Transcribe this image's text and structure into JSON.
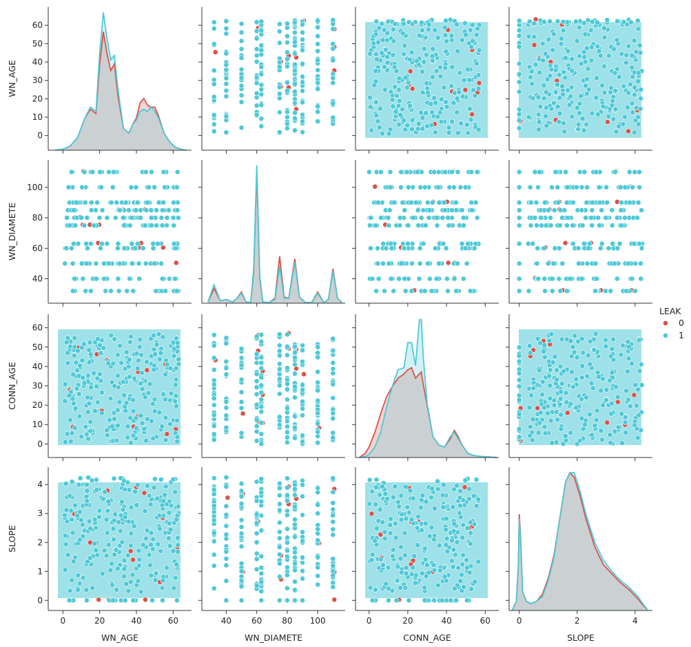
{
  "chart_data": {
    "type": "pairplot",
    "variables": [
      "WN_AGE",
      "WN_DIAMETE",
      "CONN_AGE",
      "SLOPE"
    ],
    "axes": {
      "WN_AGE": {
        "range": [
          -8,
          70
        ],
        "ticks": [
          0,
          10,
          20,
          30,
          40,
          50,
          60
        ],
        "xticks": [
          0,
          20,
          40,
          60
        ]
      },
      "WN_DIAMETE": {
        "range": [
          24,
          118
        ],
        "ticks": [
          40,
          60,
          80,
          100
        ],
        "xticks": [
          40,
          60,
          80,
          100
        ]
      },
      "CONN_AGE": {
        "range": [
          -7,
          67
        ],
        "ticks": [
          0,
          10,
          20,
          30,
          40,
          50,
          60
        ],
        "xticks": [
          0,
          20,
          40,
          60
        ]
      },
      "SLOPE": {
        "range": [
          -0.35,
          4.6
        ],
        "ticks": [
          0,
          1,
          2,
          3,
          4
        ],
        "xticks": [
          0,
          2,
          4
        ]
      }
    },
    "legend": {
      "title": "LEAK",
      "entries": [
        "0",
        "1"
      ],
      "placement": "right"
    },
    "hue_colors": {
      "0": "#d9534a",
      "1": "#4ec9d6"
    },
    "diameter_levels": [
      32,
      40,
      50,
      60,
      63,
      75,
      80,
      85,
      90,
      100,
      110
    ],
    "diagonal_kde": {
      "WN_AGE": {
        "x": [
          -4,
          0,
          4,
          8,
          12,
          15,
          18,
          20,
          22,
          24,
          26,
          28,
          30,
          33,
          36,
          38,
          40,
          42,
          44,
          46,
          48,
          50,
          52,
          55,
          58,
          61,
          64,
          67
        ],
        "0": [
          0,
          0.5,
          2,
          6,
          15,
          19,
          17,
          40,
          55,
          45,
          37,
          40,
          25,
          10,
          8,
          12,
          15,
          22,
          24,
          21,
          20,
          20,
          16,
          8,
          4,
          1.5,
          0.5,
          0
        ],
        "1": [
          0,
          0.5,
          2,
          6,
          15,
          20,
          18,
          45,
          64,
          52,
          42,
          44,
          28,
          10,
          8,
          12,
          14,
          18,
          19,
          18,
          20,
          18,
          15,
          8,
          4,
          1.5,
          0.5,
          0
        ]
      },
      "WN_DIAMETE": {
        "x": [
          28,
          32,
          36,
          40,
          44,
          47,
          50,
          53,
          56,
          58,
          60,
          62,
          64,
          68,
          72,
          75,
          78,
          81,
          85,
          88,
          92,
          96,
          100,
          104,
          107,
          110,
          113,
          116
        ],
        "0": [
          1,
          12,
          2,
          3,
          1,
          4,
          9,
          1,
          0.5,
          25,
          108,
          20,
          1,
          0.5,
          4,
          38,
          5,
          4,
          36,
          5,
          0.5,
          0.5,
          9,
          0.5,
          3,
          28,
          4,
          0.5
        ],
        "1": [
          1,
          15,
          2,
          3,
          1,
          4,
          8,
          1,
          0.5,
          28,
          112,
          22,
          1,
          0.5,
          3,
          30,
          4,
          4,
          33,
          5,
          0.5,
          0.5,
          8,
          0.5,
          3,
          26,
          4,
          0.5
        ]
      },
      "CONN_AGE": {
        "x": [
          -5,
          -2,
          0,
          3,
          6,
          9,
          12,
          15,
          18,
          20,
          22,
          24,
          26,
          27,
          28,
          30,
          33,
          36,
          39,
          42,
          44,
          46,
          48,
          51,
          54,
          58,
          62,
          66
        ],
        "0": [
          0,
          2,
          5,
          12,
          21,
          29,
          34,
          38,
          40,
          42,
          43,
          38,
          40,
          41,
          35,
          25,
          10,
          6,
          5,
          9,
          13,
          10,
          6,
          2,
          1,
          0.5,
          0.3,
          0
        ],
        "1": [
          0,
          0.5,
          1.5,
          5,
          12,
          24,
          34,
          42,
          43,
          55,
          55,
          44,
          66,
          66,
          48,
          26,
          10,
          6,
          5,
          10,
          12,
          9,
          6,
          2,
          1,
          0.5,
          0.3,
          0
        ]
      },
      "SLOPE": {
        "x": [
          -0.25,
          -0.1,
          -0.03,
          0,
          0.04,
          0.12,
          0.25,
          0.4,
          0.6,
          0.8,
          1.0,
          1.2,
          1.4,
          1.6,
          1.75,
          1.9,
          2.1,
          2.3,
          2.6,
          2.9,
          3.2,
          3.5,
          3.8,
          4.1,
          4.3,
          4.45
        ],
        "0": [
          0,
          2,
          10,
          21,
          17,
          4,
          2,
          1.5,
          2,
          3.5,
          7,
          12,
          20,
          28,
          30,
          29,
          25,
          20,
          14,
          10,
          8,
          6,
          4.5,
          2.5,
          1,
          0
        ],
        "1": [
          0,
          2,
          10,
          20,
          16,
          4,
          2,
          1.5,
          2,
          3,
          6.5,
          11.5,
          20,
          28,
          30,
          30,
          26,
          21,
          15,
          11,
          8.5,
          6.5,
          5,
          3,
          1.2,
          0
        ]
      }
    }
  }
}
